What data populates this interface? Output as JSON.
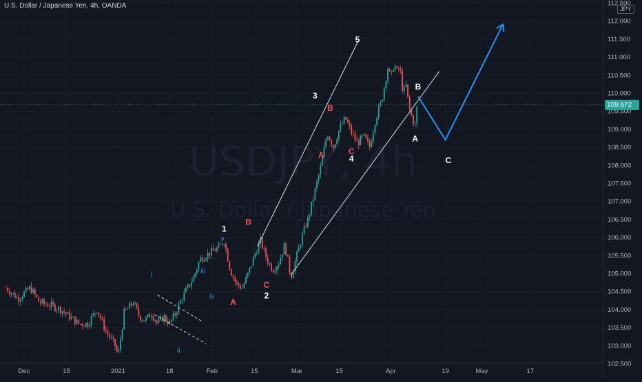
{
  "header": {
    "title": "U.S. Dollar / Japanese Yen, 4h, OANDA",
    "currency_badge": "JPY"
  },
  "watermark": {
    "symbol": "USDJPY, 4h",
    "name": "U.S. Dollar / Japanese Yen"
  },
  "current_price": {
    "label": "109.672",
    "value": 109.672,
    "color": "#26a69a"
  },
  "colors": {
    "background": "#131722",
    "up_candle": "#26a69a",
    "down_candle": "#ef5350",
    "white_label": "#ffffff",
    "red_label": "#ef5350",
    "blue_label": "#2196f3",
    "projection": "#2196f3",
    "axis_text": "#b2b5be"
  },
  "chart_data": {
    "type": "line",
    "title": "U.S. Dollar / Japanese Yen, 4h, OANDA",
    "xlabel": "",
    "ylabel": "",
    "ylim": [
      102.5,
      112.6
    ],
    "x_tick_labels": [
      "Dec",
      "15",
      "2021",
      "18",
      "Feb",
      "15",
      "Mar",
      "15",
      "Apr",
      "19",
      "May",
      "17"
    ],
    "x_ticks": [
      {
        "label": "Dec",
        "day": 0
      },
      {
        "label": "15",
        "day": 14
      },
      {
        "label": "2021",
        "day": 31
      },
      {
        "label": "18",
        "day": 48
      },
      {
        "label": "Feb",
        "day": 62
      },
      {
        "label": "15",
        "day": 76
      },
      {
        "label": "Mar",
        "day": 90
      },
      {
        "label": "15",
        "day": 104
      },
      {
        "label": "Apr",
        "day": 121
      },
      {
        "label": "19",
        "day": 139
      },
      {
        "label": "May",
        "day": 151
      },
      {
        "label": "17",
        "day": 167
      }
    ],
    "y_tick_labels": [
      "112.500",
      "112.000",
      "111.500",
      "111.000",
      "110.500",
      "110.000",
      "109.500",
      "109.000",
      "108.500",
      "108.000",
      "107.500",
      "107.000",
      "106.500",
      "106.000",
      "105.500",
      "105.000",
      "104.500",
      "104.000",
      "103.500",
      "103.000",
      "102.500"
    ],
    "series": [
      {
        "values_desc": "approximate close path",
        "x": [
          -6,
          -2,
          2,
          5,
          9,
          12,
          15,
          18,
          21,
          24,
          27,
          30,
          31,
          33,
          36,
          38,
          40,
          42,
          44,
          46,
          48,
          50,
          52,
          54,
          56,
          58,
          60,
          62,
          64,
          66,
          68,
          70,
          72,
          74,
          76,
          78,
          80,
          82,
          84,
          86,
          88,
          90,
          92,
          94,
          96,
          98,
          100,
          102,
          104,
          106,
          108,
          110,
          112,
          114,
          116,
          118,
          120,
          121,
          122,
          123,
          124,
          125,
          126
        ],
        "y": [
          104.6,
          104.3,
          104.6,
          104.2,
          104.1,
          104.0,
          103.8,
          103.6,
          103.6,
          104.0,
          103.4,
          103.0,
          102.7,
          103.9,
          104.2,
          103.8,
          103.7,
          103.9,
          103.6,
          103.8,
          103.6,
          103.9,
          104.3,
          104.6,
          104.9,
          105.4,
          105.5,
          105.6,
          105.7,
          105.9,
          105.1,
          104.7,
          104.6,
          105.0,
          105.5,
          105.9,
          105.4,
          105.1,
          105.3,
          105.8,
          104.9,
          105.5,
          106.1,
          106.6,
          107.3,
          108.0,
          108.9,
          108.5,
          109.0,
          109.3,
          108.9,
          108.6,
          108.8,
          108.5,
          109.3,
          109.8,
          110.7,
          110.4,
          110.8,
          110.6,
          110.7,
          110.0,
          110.2
        ]
      }
    ],
    "recent_path": {
      "x": [
        127,
        128,
        129,
        130
      ],
      "y": [
        109.6,
        109.3,
        109.1,
        109.9
      ]
    },
    "projection": {
      "x": [
        130,
        139,
        158
      ],
      "y": [
        109.9,
        108.7,
        111.9
      ]
    },
    "channel_upper": {
      "x": [
        77,
        110
      ],
      "y": [
        105.75,
        111.4
      ]
    },
    "channel_lower": {
      "x": [
        88,
        137
      ],
      "y": [
        104.95,
        110.6
      ]
    },
    "wave_ii_upper": {
      "x": [
        44,
        59
      ],
      "y": [
        104.4,
        103.65
      ]
    },
    "wave_ii_lower": {
      "x": [
        43,
        60
      ],
      "y": [
        103.85,
        103.05
      ]
    },
    "wave_labels": [
      {
        "text": "5",
        "day": 110,
        "price": 111.4,
        "color_key": "white_label"
      },
      {
        "text": "3",
        "day": 96,
        "price": 109.85,
        "color_key": "white_label"
      },
      {
        "text": "B",
        "day": 101,
        "price": 109.5,
        "color_key": "red_label"
      },
      {
        "text": "A",
        "day": 98,
        "price": 108.2,
        "color_key": "red_label"
      },
      {
        "text": "C",
        "day": 108,
        "price": 108.3,
        "color_key": "red_label"
      },
      {
        "text": "4",
        "day": 108,
        "price": 108.1,
        "color_key": "white_label"
      },
      {
        "text": "B",
        "day": 130,
        "price": 110.1,
        "color_key": "white_label"
      },
      {
        "text": "A",
        "day": 129,
        "price": 108.65,
        "color_key": "white_label"
      },
      {
        "text": "C",
        "day": 140,
        "price": 108.05,
        "color_key": "white_label"
      },
      {
        "text": "1",
        "day": 66,
        "price": 106.15,
        "color_key": "white_label"
      },
      {
        "text": "v",
        "day": 65.5,
        "price": 105.9,
        "color_key": "blue_label"
      },
      {
        "text": "B",
        "day": 74,
        "price": 106.35,
        "color_key": "red_label"
      },
      {
        "text": "iii",
        "day": 59,
        "price": 105.0,
        "color_key": "blue_label"
      },
      {
        "text": "iv",
        "day": 62,
        "price": 104.3,
        "color_key": "blue_label"
      },
      {
        "text": "A",
        "day": 69,
        "price": 104.12,
        "color_key": "red_label"
      },
      {
        "text": "C",
        "day": 80,
        "price": 104.6,
        "color_key": "red_label"
      },
      {
        "text": "2",
        "day": 80,
        "price": 104.3,
        "color_key": "white_label"
      },
      {
        "text": "i",
        "day": 42,
        "price": 104.9,
        "color_key": "blue_label"
      },
      {
        "text": "ii",
        "day": 51,
        "price": 102.8,
        "color_key": "blue_label"
      }
    ]
  }
}
